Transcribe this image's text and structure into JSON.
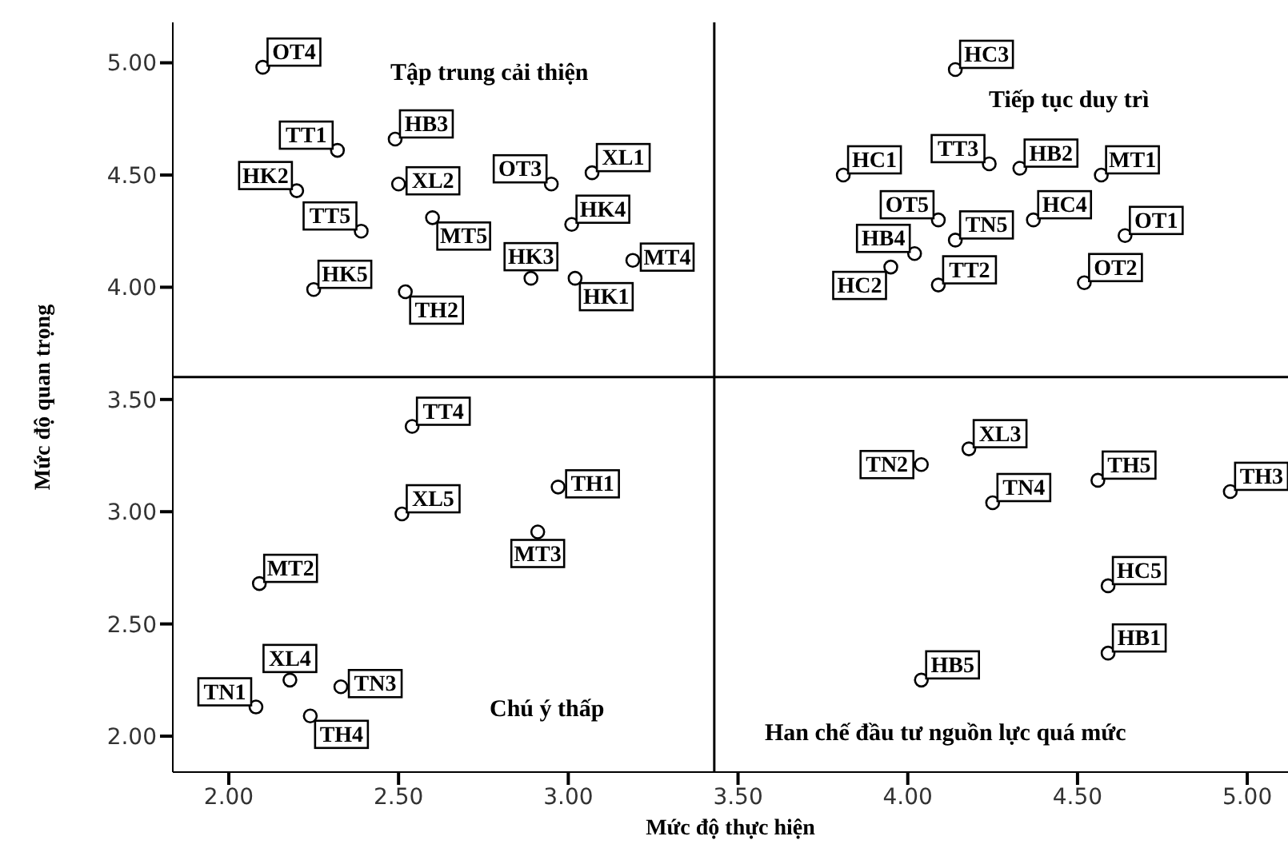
{
  "chart_data": {
    "type": "scatter",
    "xlabel": "Mức độ thực hiện",
    "ylabel": "Mức độ quan trọng",
    "annotations": [
      "Tập trung cải thiện",
      "Tiếp tục duy trì",
      "Chú ý thấp",
      "Han chế đầu tư nguồn lực quá mức"
    ],
    "series": [
      {
        "color": "#000000",
        "x": [
          2.1,
          2.32,
          2.49,
          2.2,
          2.5,
          2.95,
          3.07,
          2.39,
          2.6,
          3.01,
          2.25,
          2.89,
          3.02,
          3.19,
          2.52,
          4.14,
          3.81,
          4.24,
          4.33,
          4.57,
          4.09,
          4.14,
          4.37,
          4.64,
          4.02,
          3.95,
          4.09,
          4.52,
          2.54,
          2.51,
          2.97,
          2.91,
          2.09,
          2.18,
          2.08,
          2.33,
          2.24,
          4.18,
          4.04,
          4.25,
          4.56,
          4.95,
          4.59,
          4.59,
          4.04
        ],
        "values": [
          4.98,
          4.61,
          4.66,
          4.43,
          4.46,
          4.46,
          4.51,
          4.25,
          4.31,
          4.28,
          3.99,
          4.04,
          4.04,
          4.12,
          3.98,
          4.97,
          4.5,
          4.55,
          4.53,
          4.5,
          4.3,
          4.21,
          4.3,
          4.23,
          4.15,
          4.09,
          4.01,
          4.02,
          3.38,
          2.99,
          3.11,
          2.91,
          2.68,
          2.25,
          2.13,
          2.22,
          2.09,
          3.28,
          3.21,
          3.04,
          3.14,
          3.09,
          2.67,
          2.37,
          2.25
        ],
        "value_labels": [
          "OT4",
          "TT1",
          "HB3",
          "HK2",
          "XL2",
          "OT3",
          "XL1",
          "TT5",
          "MT5",
          "HK4",
          "HK5",
          "HK3",
          "HK1",
          "MT4",
          "TH2",
          "HC3",
          "HC1",
          "TT3",
          "HB2",
          "MT1",
          "OT5",
          "TN5",
          "HC4",
          "OT1",
          "HB4",
          "HC2",
          "TT2",
          "OT2",
          "TT4",
          "XL5",
          "TH1",
          "MT3",
          "MT2",
          "XL4",
          "TN1",
          "TN3",
          "TH4",
          "XL3",
          "TN2",
          "TN4",
          "TH5",
          "TH3",
          "HC5",
          "HB1",
          "HB5"
        ]
      }
    ],
    "marker": "circle",
    "xlim": [
      1.835,
      5.12
    ],
    "ylim": [
      1.84,
      5.18
    ],
    "xticks": [
      {
        "value": 2,
        "label": "2.00"
      },
      {
        "value": 2.5,
        "label": "2.50"
      },
      {
        "value": 3,
        "label": "3.00"
      },
      {
        "value": 3.5,
        "label": "3.50"
      },
      {
        "value": 4,
        "label": "4.00"
      },
      {
        "value": 4.5,
        "label": "4.50"
      },
      {
        "value": 5,
        "label": "5.00"
      }
    ],
    "yticks": [
      {
        "value": 2,
        "label": "2.00"
      },
      {
        "value": 2.5,
        "label": "2.50"
      },
      {
        "value": 3,
        "label": "3.00"
      },
      {
        "value": 3.5,
        "label": "3.50"
      },
      {
        "value": 4,
        "label": "4.00"
      },
      {
        "value": 4.5,
        "label": "4.50"
      },
      {
        "value": 5,
        "label": "5.00"
      }
    ],
    "ref_lines": [
      {
        "axis": "x",
        "value": 3.43,
        "color": "#000000"
      },
      {
        "axis": "y",
        "value": 3.6,
        "color": "#000000"
      }
    ],
    "grid": false,
    "legend": false
  }
}
